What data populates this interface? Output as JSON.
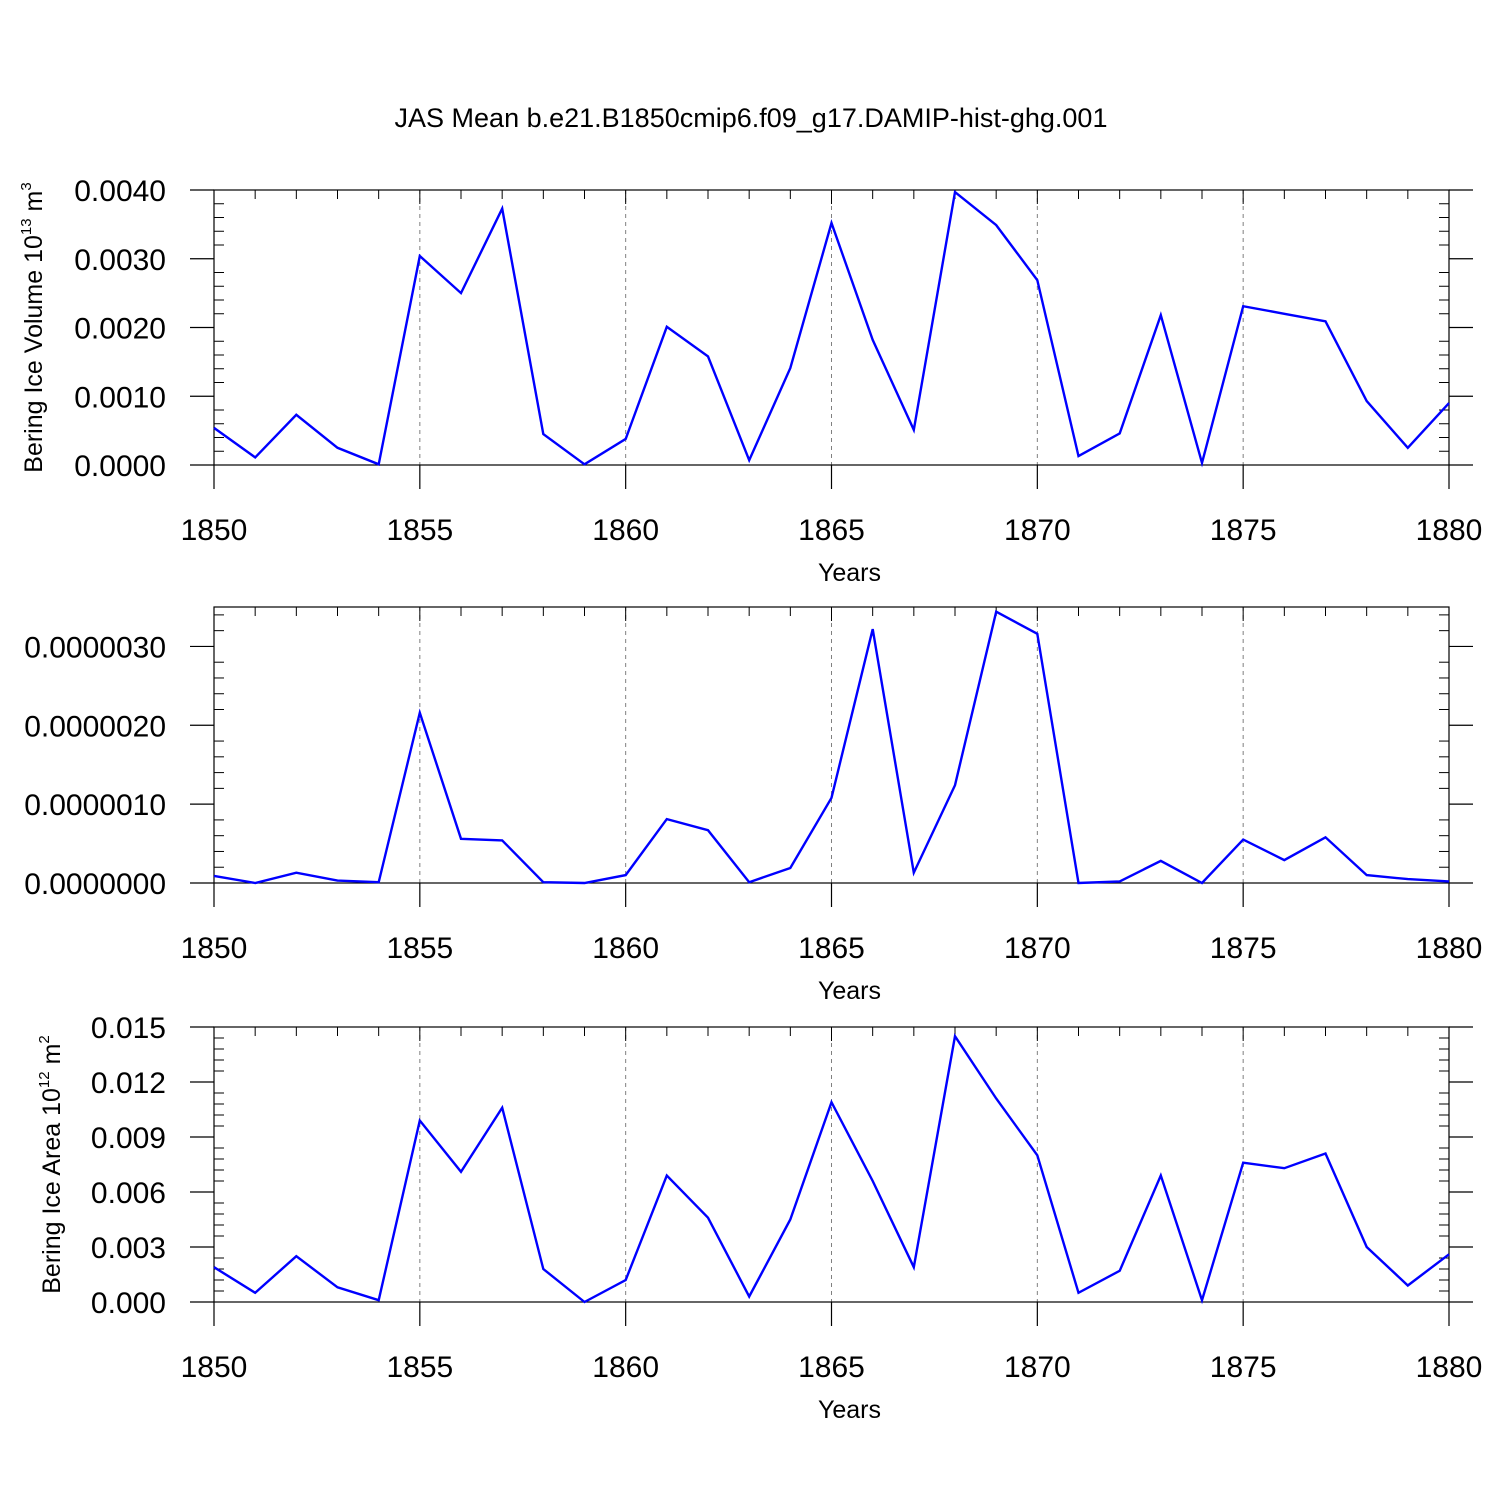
{
  "title": "JAS Mean b.e21.B1850cmip6.f09_g17.DAMIP-hist-ghg.001",
  "colors": {
    "line": "#0000ff",
    "axis": "#000000",
    "grid": "#808080",
    "background": "#ffffff"
  },
  "chart_data": [
    {
      "type": "line",
      "name": "panel-volume",
      "xlabel": "Years",
      "ylabel": {
        "text": "Bering Ice Volume 10",
        "sup": "13",
        "unit": " m",
        "unit_sup": "3"
      },
      "xlim": [
        1850,
        1880
      ],
      "ylim": [
        0,
        0.004
      ],
      "x_ticks": [
        1850,
        1855,
        1860,
        1865,
        1870,
        1875,
        1880
      ],
      "x_tick_labels": [
        "1850",
        "1855",
        "1860",
        "1865",
        "1870",
        "1875",
        "1880"
      ],
      "y_ticks": [
        0,
        0.001,
        0.002,
        0.003,
        0.004
      ],
      "y_tick_labels": [
        "0.0000",
        "0.0010",
        "0.0020",
        "0.0030",
        "0.0040"
      ],
      "grid": "vertical dashed at major x ticks",
      "x": [
        1850,
        1851,
        1852,
        1853,
        1854,
        1855,
        1856,
        1857,
        1858,
        1859,
        1860,
        1861,
        1862,
        1863,
        1864,
        1865,
        1866,
        1867,
        1868,
        1869,
        1870,
        1871,
        1872,
        1873,
        1874,
        1875,
        1876,
        1877,
        1878,
        1879,
        1880
      ],
      "y": [
        0.00054,
        0.00011,
        0.00073,
        0.00025,
        1e-05,
        0.00304,
        0.0025,
        0.00373,
        0.00045,
        1e-05,
        0.00038,
        0.00201,
        0.00158,
        7e-05,
        0.00141,
        0.00352,
        0.00182,
        0.00051,
        0.00397,
        0.00349,
        0.00269,
        0.00013,
        0.00046,
        0.00218,
        3e-05,
        0.00231,
        0.0022,
        0.00209,
        0.00093,
        0.00025,
        0.0009
      ]
    },
    {
      "type": "line",
      "name": "panel-thin",
      "xlabel": "Years",
      "ylabel": null,
      "xlim": [
        1850,
        1880
      ],
      "ylim": [
        0,
        3.5e-06
      ],
      "x_ticks": [
        1850,
        1855,
        1860,
        1865,
        1870,
        1875,
        1880
      ],
      "x_tick_labels": [
        "1850",
        "1855",
        "1860",
        "1865",
        "1870",
        "1875",
        "1880"
      ],
      "y_ticks": [
        0,
        1e-06,
        2e-06,
        3e-06
      ],
      "y_tick_labels": [
        "0.0000000",
        "0.0000010",
        "0.0000020",
        "0.0000030"
      ],
      "grid": "vertical dashed at major x ticks",
      "x": [
        1850,
        1851,
        1852,
        1853,
        1854,
        1855,
        1856,
        1857,
        1858,
        1859,
        1860,
        1861,
        1862,
        1863,
        1864,
        1865,
        1866,
        1867,
        1868,
        1869,
        1870,
        1871,
        1872,
        1873,
        1874,
        1875,
        1876,
        1877,
        1878,
        1879,
        1880
      ],
      "y": [
        9e-08,
        0.0,
        1.3e-07,
        3e-08,
        1e-08,
        2.16e-06,
        5.6e-07,
        5.4e-07,
        1e-08,
        0.0,
        1e-07,
        8.1e-07,
        6.7e-07,
        1e-08,
        1.9e-07,
        1.08e-06,
        3.22e-06,
        1.3e-07,
        1.24e-06,
        3.44e-06,
        3.16e-06,
        0.0,
        2e-08,
        2.8e-07,
        0.0,
        5.5e-07,
        2.9e-07,
        5.8e-07,
        1e-07,
        5e-08,
        2e-08
      ]
    },
    {
      "type": "line",
      "name": "panel-area",
      "xlabel": "Years",
      "ylabel": {
        "text": "Bering Ice Area 10",
        "sup": "12",
        "unit": " m",
        "unit_sup": "2"
      },
      "xlim": [
        1850,
        1880
      ],
      "ylim": [
        0,
        0.015
      ],
      "x_ticks": [
        1850,
        1855,
        1860,
        1865,
        1870,
        1875,
        1880
      ],
      "x_tick_labels": [
        "1850",
        "1855",
        "1860",
        "1865",
        "1870",
        "1875",
        "1880"
      ],
      "y_ticks": [
        0,
        0.003,
        0.006,
        0.009,
        0.012,
        0.015
      ],
      "y_tick_labels": [
        "0.000",
        "0.003",
        "0.006",
        "0.009",
        "0.012",
        "0.015"
      ],
      "grid": "vertical dashed at major x ticks",
      "x": [
        1850,
        1851,
        1852,
        1853,
        1854,
        1855,
        1856,
        1857,
        1858,
        1859,
        1860,
        1861,
        1862,
        1863,
        1864,
        1865,
        1866,
        1867,
        1868,
        1869,
        1870,
        1871,
        1872,
        1873,
        1874,
        1875,
        1876,
        1877,
        1878,
        1879,
        1880
      ],
      "y": [
        0.0019,
        0.0005,
        0.0025,
        0.0008,
        0.0001,
        0.0099,
        0.0071,
        0.0106,
        0.0018,
        0.0,
        0.0012,
        0.0069,
        0.0046,
        0.0003,
        0.0045,
        0.0109,
        0.0066,
        0.0019,
        0.0145,
        0.0111,
        0.008,
        0.0005,
        0.0017,
        0.0069,
        0.0001,
        0.0076,
        0.0073,
        0.0081,
        0.003,
        0.0009,
        0.0026
      ]
    }
  ]
}
